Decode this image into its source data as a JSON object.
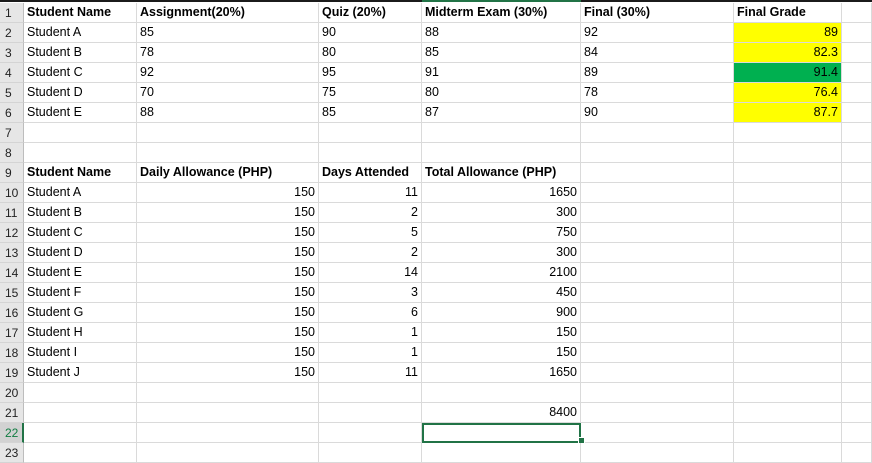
{
  "grades": {
    "headers": [
      "Student Name",
      "Assignment(20%)",
      "Quiz (20%)",
      "Midterm Exam (30%)",
      "Final (30%)",
      "Final Grade"
    ],
    "rows": [
      {
        "row": "2",
        "name": "Student A",
        "assignment": "85",
        "quiz": "90",
        "midterm": "88",
        "final": "92",
        "grade": "89",
        "color": "#ffff00"
      },
      {
        "row": "3",
        "name": "Student B",
        "assignment": "78",
        "quiz": "80",
        "midterm": "85",
        "final": "84",
        "grade": "82.3",
        "color": "#ffff00"
      },
      {
        "row": "4",
        "name": "Student C",
        "assignment": "92",
        "quiz": "95",
        "midterm": "91",
        "final": "89",
        "grade": "91.4",
        "color": "#00b050"
      },
      {
        "row": "5",
        "name": "Student D",
        "assignment": "70",
        "quiz": "75",
        "midterm": "80",
        "final": "78",
        "grade": "76.4",
        "color": "#ffff00"
      },
      {
        "row": "6",
        "name": "Student E",
        "assignment": "88",
        "quiz": "85",
        "midterm": "87",
        "final": "90",
        "grade": "87.7",
        "color": "#ffff00"
      }
    ]
  },
  "allowance": {
    "headers": [
      "Student Name",
      "Daily Allowance (PHP)",
      "Days Attended",
      "Total Allowance (PHP)"
    ],
    "rows": [
      {
        "row": "10",
        "name": "Student A",
        "daily": "150",
        "days": "11",
        "total": "1650"
      },
      {
        "row": "11",
        "name": "Student B",
        "daily": "150",
        "days": "2",
        "total": "300"
      },
      {
        "row": "12",
        "name": "Student C",
        "daily": "150",
        "days": "5",
        "total": "750"
      },
      {
        "row": "13",
        "name": "Student D",
        "daily": "150",
        "days": "2",
        "total": "300"
      },
      {
        "row": "14",
        "name": "Student E",
        "daily": "150",
        "days": "14",
        "total": "2100"
      },
      {
        "row": "15",
        "name": "Student F",
        "daily": "150",
        "days": "3",
        "total": "450"
      },
      {
        "row": "16",
        "name": "Student G",
        "daily": "150",
        "days": "6",
        "total": "900"
      },
      {
        "row": "17",
        "name": "Student H",
        "daily": "150",
        "days": "1",
        "total": "150"
      },
      {
        "row": "18",
        "name": "Student I",
        "daily": "150",
        "days": "1",
        "total": "150"
      },
      {
        "row": "19",
        "name": "Student J",
        "daily": "150",
        "days": "11",
        "total": "1650"
      }
    ],
    "sum": "8400"
  },
  "row_numbers": {
    "r1": "1",
    "r7": "7",
    "r8": "8",
    "r9": "9",
    "r20": "20",
    "r21": "21",
    "r22": "22",
    "r23": "23"
  },
  "selected_row": "22",
  "colors": {
    "accent": "#217346",
    "highlight_yellow": "#ffff00",
    "highlight_green": "#00b050"
  }
}
